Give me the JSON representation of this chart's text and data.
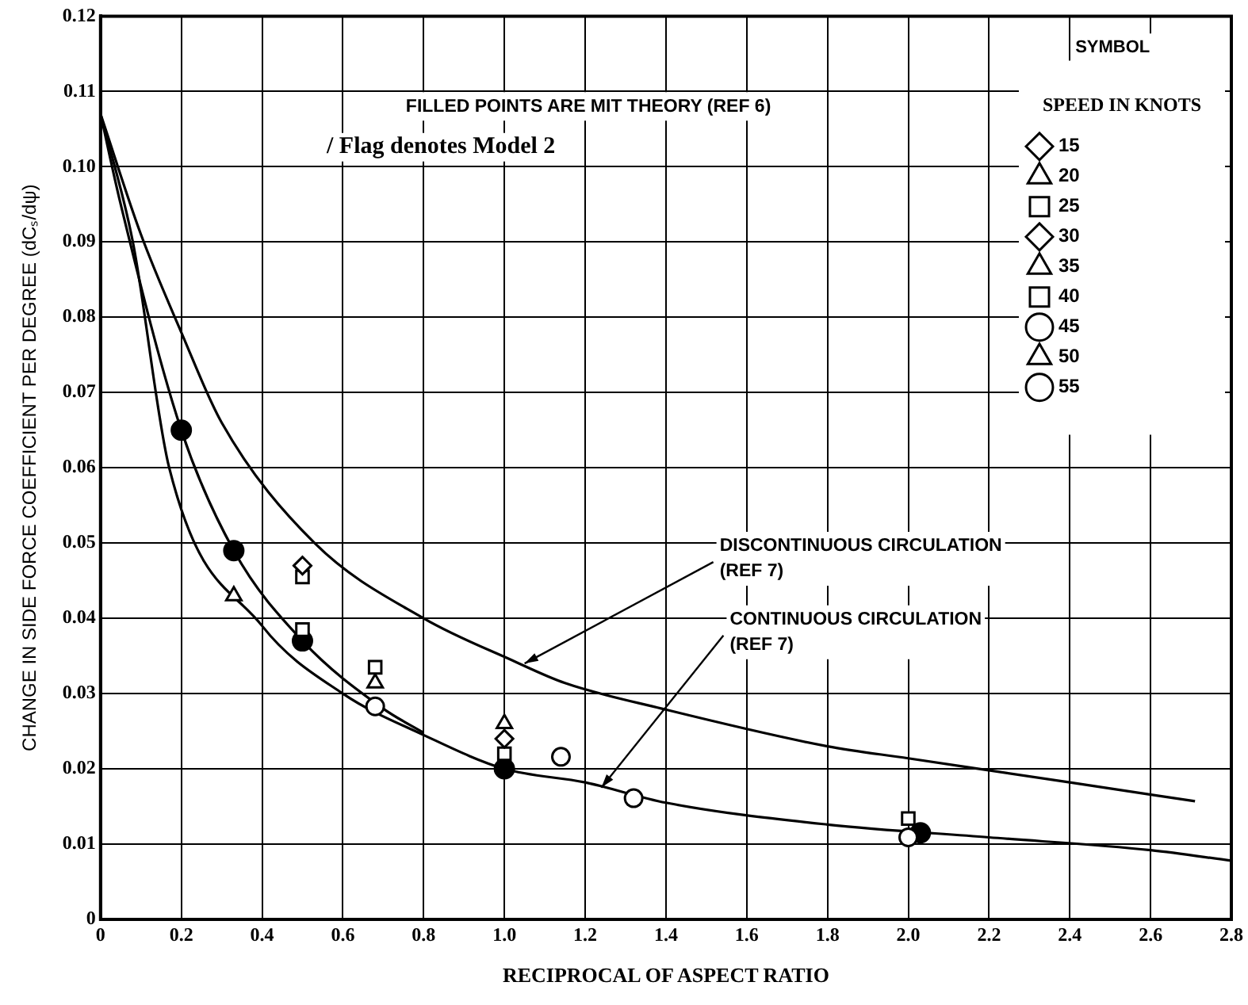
{
  "chart_data": {
    "type": "scatter",
    "xlabel": "RECIPROCAL OF ASPECT RATIO",
    "ylabel": "CHANGE IN SIDE FORCE COEFFICIENT PER DEGREE (dCₛ/dψ)",
    "legend_title": "SPEED IN KNOTS",
    "legend": "top right",
    "grid": true,
    "xlim": [
      0,
      2.8
    ],
    "xticks": [
      0,
      0.2,
      0.4,
      0.6,
      0.8,
      {
        "value": 1.0,
        "label": "1.0"
      },
      1.2,
      1.4,
      1.6,
      1.8,
      {
        "value": 2.0,
        "label": "2.0"
      },
      2.2,
      2.4,
      2.6,
      2.8
    ],
    "ylim": [
      0,
      0.12
    ],
    "yticks": [
      0,
      0.01,
      0.02,
      0.03,
      0.04,
      0.05,
      0.06,
      0.07,
      0.08,
      0.09,
      {
        "value": 0.1,
        "label": "0.10"
      },
      0.11,
      0.12
    ],
    "annotations": [
      "FILLED POINTS ARE MIT THEORY (REF 6)",
      "/ Flag denotes Model 2",
      "SYMBOL",
      {
        "text": "DISCONTINUOUS CIRCULATION (REF 7)",
        "x": 1.05,
        "y": 0.034
      },
      {
        "text": "CONTINUOUS CIRCULATION (REF 7)",
        "x": 1.24,
        "y": 0.0175
      }
    ],
    "series": [
      {
        "type": "line",
        "color": "#000000",
        "marker": "none",
        "line_style": "solid",
        "x": [
          0,
          0.1,
          0.2,
          0.3,
          0.53,
          0.8,
          1.02,
          1.15,
          1.39,
          1.8,
          2.0,
          2.4,
          2.71
        ],
        "values": [
          0.107,
          0.091,
          0.078,
          0.066,
          0.05,
          0.04,
          0.0344,
          0.0314,
          0.028,
          0.023,
          0.0214,
          0.0182,
          0.0157
        ]
      },
      {
        "type": "line",
        "color": "#000000",
        "marker": "none",
        "line_style": "solid",
        "x": [
          0,
          0.05,
          0.2,
          0.33,
          0.5,
          0.7,
          0.8
        ],
        "values": [
          0.107,
          0.095,
          0.065,
          0.049,
          0.037,
          0.028,
          0.0248
        ]
      },
      {
        "type": "line",
        "color": "#000000",
        "marker": "none",
        "line_style": "solid",
        "x": [
          0,
          0.08,
          0.17,
          0.4,
          0.6,
          0.8,
          1.0,
          1.2,
          1.4,
          1.8,
          2.2,
          2.6,
          2.8
        ],
        "values": [
          0.107,
          0.09,
          0.06,
          0.039,
          0.03,
          0.0245,
          0.02,
          0.0182,
          0.0155,
          0.0126,
          0.0109,
          0.0092,
          0.0078
        ]
      },
      {
        "color": "#000000",
        "marker": "circle",
        "x": [
          0.2,
          0.33,
          0.5,
          1.0,
          2.03
        ],
        "values": [
          0.065,
          0.049,
          0.037,
          0.02,
          0.0115
        ]
      },
      {
        "name": "15",
        "color": "#000000",
        "marker": "diamond",
        "x": [
          1.0
        ],
        "values": [
          0.024
        ]
      },
      {
        "name": "20",
        "color": "#000000",
        "marker": "triangle",
        "x": [
          0.33
        ],
        "values": [
          0.043
        ]
      },
      {
        "name": "25",
        "color": "#000000",
        "marker": "square",
        "x": [
          0.68,
          1.0,
          2.0
        ],
        "values": [
          0.0335,
          0.022,
          0.0134
        ]
      },
      {
        "name": "30",
        "color": "#000000",
        "marker": "diamond",
        "x": [
          0.5
        ],
        "values": [
          0.047
        ]
      },
      {
        "name": "35",
        "color": "#000000",
        "marker": "triangle",
        "x": [
          0.68
        ],
        "values": [
          0.0314
        ]
      },
      {
        "name": "40",
        "color": "#000000",
        "marker": "square",
        "x": [
          0.5,
          0.5
        ],
        "values": [
          0.0455,
          0.0385
        ]
      },
      {
        "name": "45",
        "color": "#000000",
        "marker": "circle",
        "x": [
          0.68,
          1.14
        ],
        "values": [
          0.0283,
          0.0216
        ]
      },
      {
        "name": "50",
        "color": "#000000",
        "marker": "triangle",
        "x": [
          1.0
        ],
        "values": [
          0.026
        ]
      },
      {
        "name": "55",
        "color": "#000000",
        "marker": "circle",
        "x": [
          1.32,
          2.0
        ],
        "values": [
          0.0161,
          0.0109
        ]
      }
    ]
  }
}
